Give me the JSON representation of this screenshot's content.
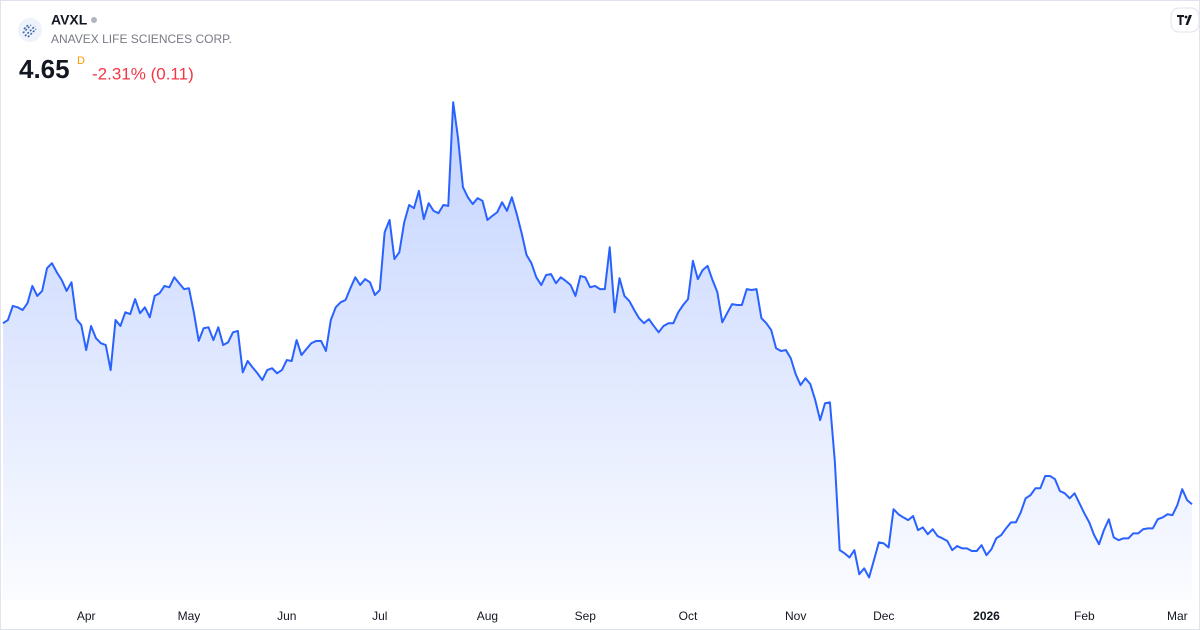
{
  "header": {
    "symbol": "AVXL",
    "name": "ANAVEX LIFE SCIENCES CORP.",
    "price": "4.65",
    "interval": "D",
    "change": "-2.31% (0.11)"
  },
  "chart_data": {
    "type": "area",
    "color": "#2962ff",
    "values": [
      8.63,
      8.7,
      9.01,
      8.98,
      8.92,
      9.07,
      9.45,
      9.23,
      9.34,
      9.84,
      9.95,
      9.75,
      9.58,
      9.34,
      9.53,
      8.72,
      8.59,
      8.04,
      8.57,
      8.3,
      8.19,
      8.15,
      7.6,
      8.7,
      8.57,
      8.87,
      8.83,
      9.16,
      8.85,
      8.98,
      8.76,
      9.23,
      9.29,
      9.45,
      9.42,
      9.64,
      9.51,
      9.38,
      9.4,
      8.87,
      8.24,
      8.52,
      8.54,
      8.26,
      8.54,
      8.15,
      8.21,
      8.43,
      8.46,
      7.55,
      7.8,
      7.66,
      7.53,
      7.38,
      7.6,
      7.64,
      7.53,
      7.6,
      7.82,
      7.8,
      8.26,
      7.93,
      8.06,
      8.19,
      8.24,
      8.24,
      8.02,
      8.7,
      8.98,
      9.09,
      9.14,
      9.4,
      9.64,
      9.47,
      9.6,
      9.53,
      9.25,
      9.36,
      10.63,
      10.9,
      10.04,
      10.19,
      10.85,
      11.23,
      11.16,
      11.54,
      10.92,
      11.27,
      11.1,
      11.05,
      11.23,
      11.21,
      13.49,
      12.7,
      11.62,
      11.4,
      11.25,
      11.38,
      11.32,
      10.9,
      10.99,
      11.07,
      11.29,
      11.1,
      11.4,
      11.03,
      10.61,
      10.13,
      9.95,
      9.64,
      9.47,
      9.69,
      9.71,
      9.51,
      9.64,
      9.56,
      9.47,
      9.23,
      9.67,
      9.64,
      9.42,
      9.45,
      9.38,
      9.38,
      10.3,
      8.87,
      9.62,
      9.23,
      9.12,
      8.92,
      8.74,
      8.63,
      8.72,
      8.57,
      8.43,
      8.57,
      8.63,
      8.63,
      8.87,
      9.03,
      9.16,
      10.0,
      9.6,
      9.8,
      9.89,
      9.58,
      9.31,
      8.65,
      8.85,
      9.05,
      9.03,
      9.03,
      9.38,
      9.36,
      9.38,
      8.74,
      8.63,
      8.48,
      8.08,
      8.02,
      8.04,
      7.86,
      7.51,
      7.27,
      7.42,
      7.29,
      6.94,
      6.5,
      6.87,
      6.89,
      5.6,
      3.64,
      3.57,
      3.48,
      3.64,
      3.11,
      3.24,
      3.04,
      3.42,
      3.81,
      3.79,
      3.7,
      4.54,
      4.43,
      4.36,
      4.3,
      4.39,
      4.08,
      4.14,
      3.99,
      4.1,
      3.95,
      3.9,
      3.84,
      3.64,
      3.73,
      3.68,
      3.68,
      3.62,
      3.62,
      3.75,
      3.53,
      3.66,
      3.9,
      3.97,
      4.12,
      4.25,
      4.25,
      4.47,
      4.78,
      4.85,
      5.0,
      5.0,
      5.27,
      5.27,
      5.2,
      4.94,
      4.89,
      4.78,
      4.89,
      4.67,
      4.45,
      4.25,
      3.97,
      3.77,
      4.08,
      4.32,
      3.92,
      3.86,
      3.9,
      3.9,
      4.01,
      4.01,
      4.1,
      4.12,
      4.12,
      4.32,
      4.36,
      4.43,
      4.41,
      4.63,
      4.98,
      4.74,
      4.65
    ],
    "ylim": [
      2.5,
      14
    ],
    "xticks": [
      {
        "value": 17,
        "label": "Apr"
      },
      {
        "value": 38,
        "label": "May"
      },
      {
        "value": 58,
        "label": "Jun"
      },
      {
        "value": 77,
        "label": "Jul"
      },
      {
        "value": 99,
        "label": "Aug"
      },
      {
        "value": 119,
        "label": "Sep"
      },
      {
        "value": 140,
        "label": "Oct"
      },
      {
        "value": 162,
        "label": "Nov"
      },
      {
        "value": 180,
        "label": "Dec"
      },
      {
        "value": 201,
        "label": "2026"
      },
      {
        "value": 221,
        "label": "Feb"
      },
      {
        "value": 240,
        "label": "Mar"
      }
    ]
  }
}
